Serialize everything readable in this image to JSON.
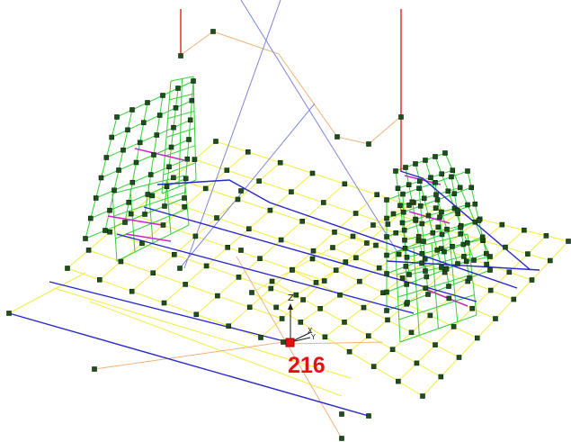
{
  "viewport": {
    "background": "#ffffff",
    "colors": {
      "yellow": "#f2ee3a",
      "green": "#34cf34",
      "blue": "#2828c8",
      "lightblue": "#7d86d8",
      "orange": "#f0b27a",
      "red": "#e02020",
      "magenta": "#c828c8",
      "node": "#1f4d1f"
    },
    "selected_node": {
      "label": "216",
      "color": "#e81010"
    },
    "axis_triad": {
      "z_label": "Z",
      "x_label": "X",
      "y_label": "Y"
    }
  }
}
